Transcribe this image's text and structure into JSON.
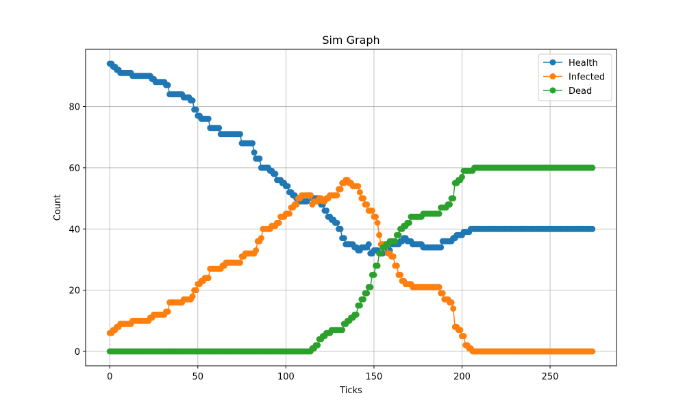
{
  "chart_data": {
    "type": "line",
    "title": "Sim Graph",
    "xlabel": "Ticks",
    "ylabel": "Count",
    "xlim": [
      -13.7,
      287.7
    ],
    "ylim": [
      -4.7,
      98.7
    ],
    "xticks": [
      0,
      50,
      100,
      150,
      200,
      250
    ],
    "yticks": [
      0,
      20,
      40,
      60,
      80
    ],
    "grid": true,
    "legend_position": "top-right",
    "marker": "circle",
    "series": [
      {
        "name": "Health",
        "color": "#1f77b4",
        "points": [
          [
            0,
            94
          ],
          [
            2,
            93
          ],
          [
            4,
            92
          ],
          [
            6,
            91
          ],
          [
            12,
            91
          ],
          [
            13,
            90
          ],
          [
            22,
            90
          ],
          [
            24,
            89
          ],
          [
            26,
            88
          ],
          [
            32,
            87
          ],
          [
            34,
            84
          ],
          [
            40,
            84
          ],
          [
            42,
            83
          ],
          [
            46,
            82
          ],
          [
            48,
            79
          ],
          [
            50,
            77
          ],
          [
            52,
            76
          ],
          [
            56,
            76
          ],
          [
            57,
            73
          ],
          [
            61,
            73
          ],
          [
            63,
            71
          ],
          [
            73,
            71
          ],
          [
            75,
            68
          ],
          [
            80,
            68
          ],
          [
            82,
            65
          ],
          [
            83,
            63
          ],
          [
            85,
            63
          ],
          [
            86,
            60
          ],
          [
            91,
            59
          ],
          [
            93,
            58
          ],
          [
            95,
            56
          ],
          [
            98,
            55
          ],
          [
            100,
            54
          ],
          [
            102,
            52
          ],
          [
            104,
            51
          ],
          [
            106,
            50
          ],
          [
            108,
            49
          ],
          [
            111,
            49
          ],
          [
            113,
            51
          ],
          [
            115,
            50
          ],
          [
            118,
            50
          ],
          [
            120,
            48
          ],
          [
            122,
            46
          ],
          [
            124,
            44
          ],
          [
            126,
            43
          ],
          [
            128,
            42
          ],
          [
            130,
            40
          ],
          [
            132,
            37
          ],
          [
            134,
            35
          ],
          [
            137,
            35
          ],
          [
            139,
            34
          ],
          [
            141,
            33
          ],
          [
            143,
            34
          ],
          [
            145,
            34
          ],
          [
            147,
            35
          ],
          [
            148,
            32
          ],
          [
            150,
            33
          ],
          [
            152,
            33
          ],
          [
            153,
            32
          ],
          [
            156,
            34
          ],
          [
            158,
            33
          ],
          [
            160,
            35
          ],
          [
            163,
            35
          ],
          [
            165,
            36
          ],
          [
            167,
            37
          ],
          [
            169,
            36
          ],
          [
            172,
            35
          ],
          [
            177,
            35
          ],
          [
            178,
            34
          ],
          [
            187,
            34
          ],
          [
            189,
            36
          ],
          [
            193,
            36
          ],
          [
            195,
            37
          ],
          [
            197,
            38
          ],
          [
            200,
            38
          ],
          [
            201,
            39
          ],
          [
            204,
            39
          ],
          [
            205,
            40
          ],
          [
            274,
            40
          ]
        ]
      },
      {
        "name": "Infected",
        "color": "#ff7f0e",
        "points": [
          [
            0,
            6
          ],
          [
            2,
            7
          ],
          [
            4,
            8
          ],
          [
            6,
            9
          ],
          [
            12,
            9
          ],
          [
            13,
            10
          ],
          [
            21,
            10
          ],
          [
            23,
            11
          ],
          [
            25,
            12
          ],
          [
            30,
            12
          ],
          [
            32,
            13
          ],
          [
            34,
            16
          ],
          [
            40,
            16
          ],
          [
            42,
            17
          ],
          [
            46,
            17
          ],
          [
            47,
            18
          ],
          [
            48,
            20
          ],
          [
            50,
            22
          ],
          [
            52,
            23
          ],
          [
            54,
            24
          ],
          [
            55,
            24
          ],
          [
            57,
            27
          ],
          [
            62,
            27
          ],
          [
            64,
            28
          ],
          [
            66,
            29
          ],
          [
            73,
            29
          ],
          [
            75,
            31
          ],
          [
            77,
            32
          ],
          [
            81,
            32
          ],
          [
            83,
            33
          ],
          [
            84,
            36
          ],
          [
            86,
            37
          ],
          [
            87,
            40
          ],
          [
            90,
            40
          ],
          [
            92,
            41
          ],
          [
            95,
            42
          ],
          [
            97,
            44
          ],
          [
            100,
            45
          ],
          [
            102,
            45
          ],
          [
            103,
            47
          ],
          [
            105,
            48
          ],
          [
            107,
            50
          ],
          [
            109,
            51
          ],
          [
            113,
            51
          ],
          [
            115,
            48
          ],
          [
            116,
            49
          ],
          [
            119,
            50
          ],
          [
            121,
            49
          ],
          [
            123,
            50
          ],
          [
            125,
            51
          ],
          [
            128,
            51
          ],
          [
            130,
            53
          ],
          [
            132,
            55
          ],
          [
            134,
            56
          ],
          [
            136,
            55
          ],
          [
            138,
            54
          ],
          [
            140,
            54
          ],
          [
            142,
            52
          ],
          [
            143,
            50
          ],
          [
            145,
            48
          ],
          [
            147,
            46
          ],
          [
            149,
            46
          ],
          [
            150,
            44
          ],
          [
            152,
            42
          ],
          [
            153,
            38
          ],
          [
            154,
            35
          ],
          [
            156,
            35
          ],
          [
            158,
            32
          ],
          [
            160,
            31
          ],
          [
            162,
            28
          ],
          [
            164,
            25
          ],
          [
            166,
            23
          ],
          [
            168,
            22
          ],
          [
            170,
            22
          ],
          [
            172,
            21
          ],
          [
            186,
            21
          ],
          [
            188,
            19
          ],
          [
            190,
            17
          ],
          [
            193,
            16
          ],
          [
            195,
            14
          ],
          [
            196,
            8
          ],
          [
            198,
            7
          ],
          [
            200,
            5
          ],
          [
            202,
            2
          ],
          [
            204,
            1
          ],
          [
            206,
            0
          ],
          [
            274,
            0
          ]
        ]
      },
      {
        "name": "Dead",
        "color": "#2ca02c",
        "points": [
          [
            0,
            0
          ],
          [
            113,
            0
          ],
          [
            115,
            1
          ],
          [
            117,
            2
          ],
          [
            119,
            4
          ],
          [
            121,
            5
          ],
          [
            123,
            6
          ],
          [
            126,
            7
          ],
          [
            131,
            7
          ],
          [
            133,
            9
          ],
          [
            135,
            10
          ],
          [
            137,
            11
          ],
          [
            139,
            12
          ],
          [
            141,
            15
          ],
          [
            143,
            17
          ],
          [
            145,
            19
          ],
          [
            147,
            21
          ],
          [
            149,
            25
          ],
          [
            151,
            28
          ],
          [
            153,
            32
          ],
          [
            155,
            34
          ],
          [
            157,
            35
          ],
          [
            159,
            36
          ],
          [
            161,
            36
          ],
          [
            163,
            38
          ],
          [
            165,
            40
          ],
          [
            167,
            41
          ],
          [
            169,
            42
          ],
          [
            171,
            44
          ],
          [
            176,
            44
          ],
          [
            178,
            45
          ],
          [
            186,
            45
          ],
          [
            188,
            47
          ],
          [
            190,
            47
          ],
          [
            192,
            48
          ],
          [
            194,
            50
          ],
          [
            196,
            55
          ],
          [
            198,
            56
          ],
          [
            200,
            57
          ],
          [
            201,
            59
          ],
          [
            205,
            59
          ],
          [
            207,
            60
          ],
          [
            274,
            60
          ]
        ]
      }
    ]
  }
}
